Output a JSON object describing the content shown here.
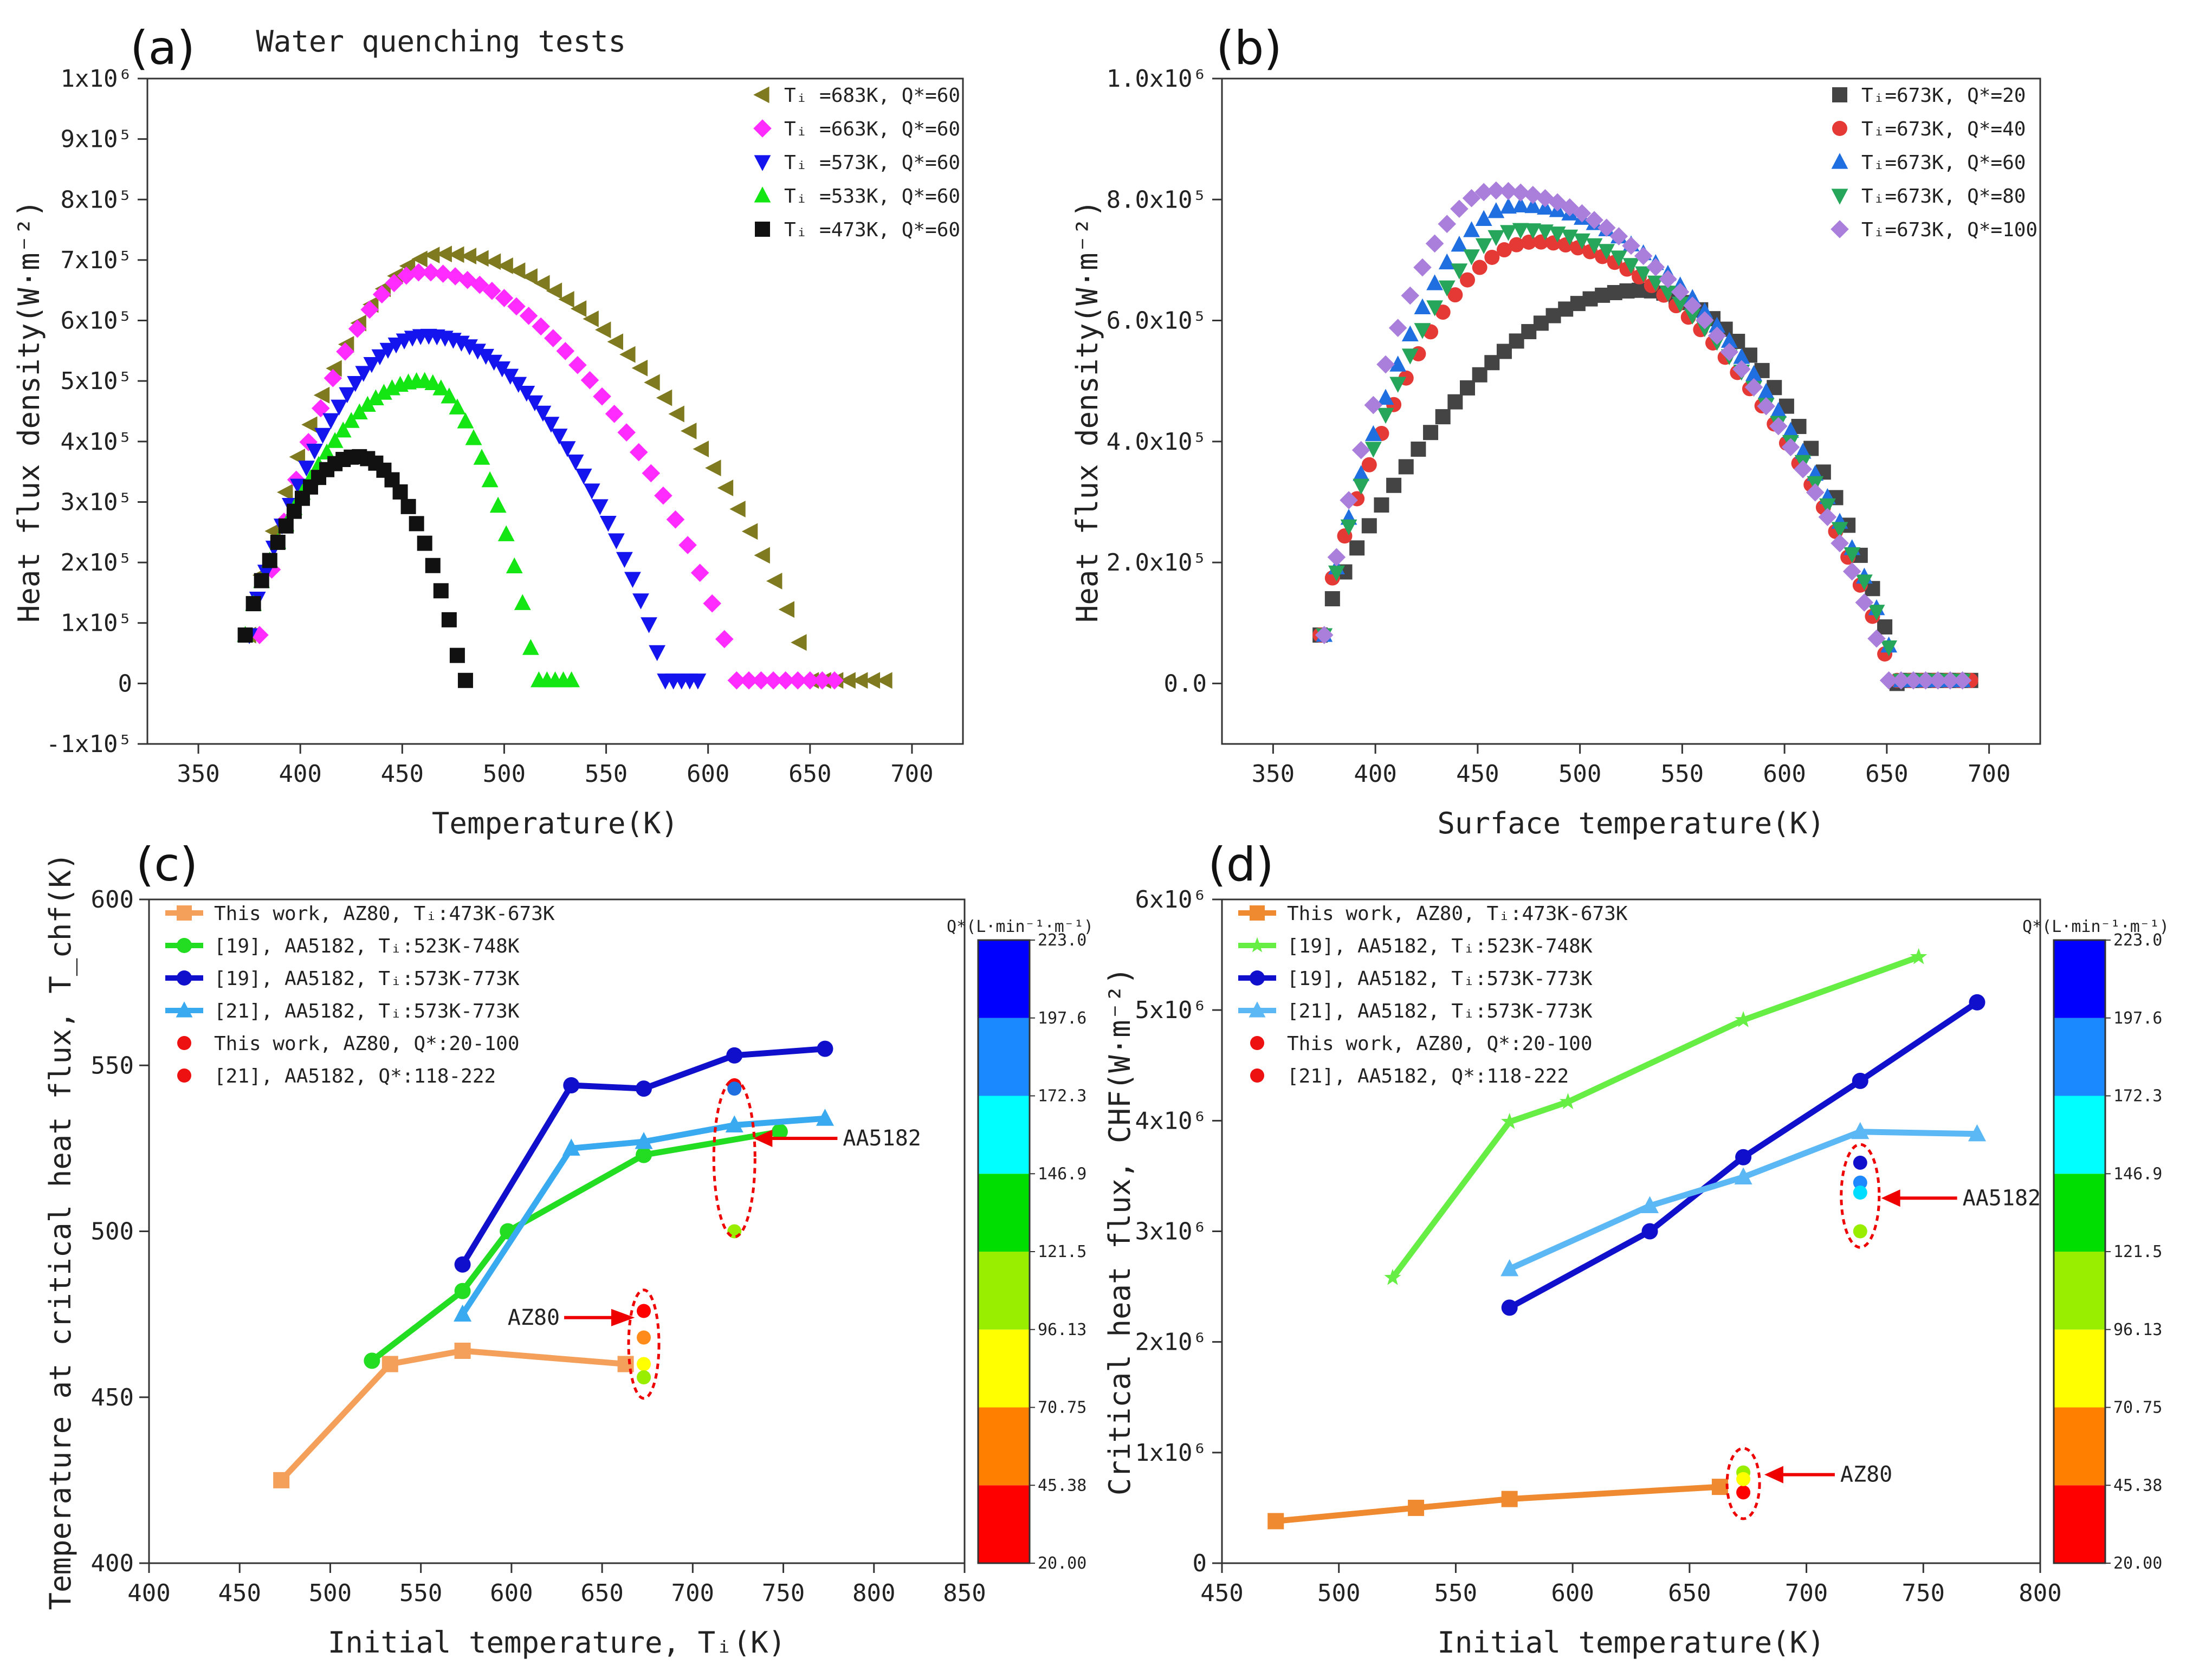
{
  "figure": {
    "panels": [
      "(a)",
      "(b)",
      "(c)",
      "(d)"
    ]
  },
  "chart_data": [
    {
      "id": "a",
      "type": "scatter",
      "panel_label": "(a)",
      "title": "Water quenching tests",
      "xlabel": "Temperature(K)",
      "ylabel": "Heat flux density(W·m⁻²)",
      "xlim": [
        325,
        725
      ],
      "ylim": [
        -100000,
        1000000
      ],
      "xticks": [
        350,
        400,
        450,
        500,
        550,
        600,
        650,
        700
      ],
      "yticks": [
        -100000,
        0,
        100000,
        200000,
        300000,
        400000,
        500000,
        600000,
        700000,
        800000,
        900000,
        1000000
      ],
      "ytick_labels": [
        "-1x10⁵",
        "0",
        "1x10⁵",
        "2x10⁵",
        "3x10⁵",
        "4x10⁵",
        "5x10⁵",
        "6x10⁵",
        "7x10⁵",
        "8x10⁵",
        "9x10⁵",
        "1x10⁶"
      ],
      "legend_pos": "top-right",
      "series": [
        {
          "name": "Tᵢ =683K, Q*=60",
          "marker": "triangle-left",
          "color": "#7f7a1f",
          "peak_x": 470,
          "peak_y": 710000,
          "start_x": 375,
          "end_x": 688,
          "zero_x": 650
        },
        {
          "name": "Tᵢ =663K, Q*=60",
          "marker": "diamond",
          "color": "#ff2bff",
          "peak_x": 460,
          "peak_y": 680000,
          "start_x": 380,
          "end_x": 663,
          "zero_x": 613
        },
        {
          "name": "Tᵢ =573K, Q*=60",
          "marker": "triangle-down",
          "color": "#1414ee",
          "peak_x": 462,
          "peak_y": 575000,
          "start_x": 375,
          "end_x": 595,
          "zero_x": 578
        },
        {
          "name": "Tᵢ =533K, Q*=60",
          "marker": "triangle-up",
          "color": "#14e614",
          "peak_x": 460,
          "peak_y": 500000,
          "start_x": 373,
          "end_x": 533,
          "zero_x": 515
        },
        {
          "name": "Tᵢ =473K, Q*=60",
          "marker": "square",
          "color": "#111111",
          "peak_x": 428,
          "peak_y": 375000,
          "start_x": 373,
          "end_x": 481,
          "zero_x": 479
        }
      ]
    },
    {
      "id": "b",
      "type": "scatter",
      "panel_label": "(b)",
      "title": "",
      "xlabel": "Surface temperature(K)",
      "ylabel": "Heat flux density(W·m⁻²)",
      "xlim": [
        325,
        725
      ],
      "ylim": [
        -100000,
        1000000
      ],
      "xticks": [
        350,
        400,
        450,
        500,
        550,
        600,
        650,
        700
      ],
      "yticks": [
        0,
        200000,
        400000,
        600000,
        800000,
        1000000
      ],
      "ytick_labels": [
        "0.0",
        "2.0x10⁵",
        "4.0x10⁵",
        "6.0x10⁵",
        "8.0x10⁵",
        "1.0x10⁶"
      ],
      "legend_pos": "top-right",
      "series": [
        {
          "name": "Tᵢ=673K, Q*=20",
          "marker": "square",
          "color": "#444444",
          "peak_x": 530,
          "peak_y": 650000,
          "start_x": 373,
          "end_x": 692,
          "zero_x": 655
        },
        {
          "name": "Tᵢ=673K, Q*=40",
          "marker": "circle",
          "color": "#e53935",
          "peak_x": 478,
          "peak_y": 730000,
          "start_x": 373,
          "end_x": 692,
          "zero_x": 652
        },
        {
          "name": "Tᵢ=673K, Q*=60",
          "marker": "triangle-up",
          "color": "#1f6fe0",
          "peak_x": 470,
          "peak_y": 790000,
          "start_x": 375,
          "end_x": 692,
          "zero_x": 655
        },
        {
          "name": "Tᵢ=673K, Q*=80",
          "marker": "triangle-down",
          "color": "#26a65b",
          "peak_x": 472,
          "peak_y": 750000,
          "start_x": 375,
          "end_x": 692,
          "zero_x": 655
        },
        {
          "name": "Tᵢ=673K, Q*=100",
          "marker": "diamond",
          "color": "#a97fdb",
          "peak_x": 458,
          "peak_y": 815000,
          "start_x": 375,
          "end_x": 692,
          "zero_x": 650
        }
      ]
    },
    {
      "id": "c",
      "type": "line",
      "panel_label": "(c)",
      "xlabel": "Initial temperature, Tᵢ(K)",
      "ylabel": "Temperature at critical heat flux, T_chf(K)",
      "xlim": [
        400,
        850
      ],
      "ylim": [
        400,
        600
      ],
      "xticks": [
        400,
        450,
        500,
        550,
        600,
        650,
        700,
        750,
        800,
        850
      ],
      "yticks": [
        400,
        450,
        500,
        550,
        600
      ],
      "legend_pos": "top-left",
      "series": [
        {
          "name": "This work, AZ80, Tᵢ:473K-673K",
          "marker": "square",
          "color": "#f5a05a",
          "x": [
            473,
            533,
            573,
            663
          ],
          "y": [
            425,
            460,
            464,
            460
          ]
        },
        {
          "name": "[19], AA5182, Tᵢ:523K-748K",
          "marker": "circle",
          "color": "#22dd22",
          "x": [
            523,
            573,
            598,
            673,
            748
          ],
          "y": [
            461,
            482,
            500,
            523,
            530
          ]
        },
        {
          "name": "[19], AA5182, Tᵢ:573K-773K",
          "marker": "circle",
          "color": "#1010cc",
          "x": [
            573,
            633,
            673,
            723,
            773
          ],
          "y": [
            490,
            544,
            543,
            553,
            555
          ]
        },
        {
          "name": "[21], AA5182, Tᵢ:573K-773K",
          "marker": "triangle-up",
          "color": "#39a9f0",
          "x": [
            573,
            633,
            673,
            723,
            773
          ],
          "y": [
            475,
            525,
            527,
            532,
            534
          ]
        }
      ],
      "scatter_points": [
        {
          "x": 673,
          "y": 476,
          "color": "#ff0000"
        },
        {
          "x": 673,
          "y": 468,
          "color": "#ff8c1a"
        },
        {
          "x": 673,
          "y": 460,
          "color": "#ffff00"
        },
        {
          "x": 673,
          "y": 456,
          "color": "#99ee00"
        },
        {
          "x": 723,
          "y": 544,
          "color": "#ff0000"
        },
        {
          "x": 723,
          "y": 543,
          "color": "#1f6fe0"
        },
        {
          "x": 723,
          "y": 500,
          "color": "#99ee00"
        }
      ],
      "scatter_legend": [
        "This work, AZ80, Q*:20-100",
        "[21], AA5182, Q*:118-222"
      ],
      "annotations": [
        "AA5182",
        "AZ80"
      ],
      "colorbar": {
        "title": "Q*(L·min⁻¹·m⁻¹)",
        "ticks": [
          "223.0",
          "197.6",
          "172.3",
          "146.9",
          "121.5",
          "96.13",
          "70.75",
          "45.38",
          "20.00"
        ],
        "colors": [
          "#ff0000",
          "#ff8000",
          "#ffff00",
          "#99ee00",
          "#00dd00",
          "#00ffff",
          "#1a88ff",
          "#0000ff"
        ]
      }
    },
    {
      "id": "d",
      "type": "line",
      "panel_label": "(d)",
      "xlabel": "Initial temperature(K)",
      "ylabel": "Critical heat flux, CHF(W·m⁻²)",
      "xlim": [
        450,
        800
      ],
      "ylim": [
        0,
        6000000
      ],
      "xticks": [
        450,
        500,
        550,
        600,
        650,
        700,
        750,
        800
      ],
      "yticks": [
        0,
        1000000,
        2000000,
        3000000,
        4000000,
        5000000,
        6000000
      ],
      "ytick_labels": [
        "0",
        "1x10⁶",
        "2x10⁶",
        "3x10⁶",
        "4x10⁶",
        "5x10⁶",
        "6x10⁶"
      ],
      "legend_pos": "top-left",
      "series": [
        {
          "name": "This work, AZ80, Tᵢ:473K-673K",
          "marker": "square",
          "color": "#f08a30",
          "x": [
            473,
            533,
            573,
            663
          ],
          "y": [
            380000,
            500000,
            580000,
            690000
          ]
        },
        {
          "name": "[19], AA5182, Tᵢ:523K-748K",
          "marker": "star",
          "color": "#66ee44",
          "x": [
            523,
            573,
            598,
            673,
            748
          ],
          "y": [
            2580000,
            3990000,
            4170000,
            4910000,
            5480000
          ]
        },
        {
          "name": "[19], AA5182, Tᵢ:573K-773K",
          "marker": "circle",
          "color": "#1010cc",
          "x": [
            573,
            633,
            673,
            723,
            773
          ],
          "y": [
            2310000,
            3000000,
            3670000,
            4360000,
            5070000
          ]
        },
        {
          "name": "[21], AA5182, Tᵢ:573K-773K",
          "marker": "triangle-up",
          "color": "#5cb8f5",
          "x": [
            573,
            633,
            673,
            723,
            773
          ],
          "y": [
            2660000,
            3230000,
            3490000,
            3900000,
            3880000
          ]
        }
      ],
      "scatter_points": [
        {
          "x": 673,
          "y": 640000,
          "color": "#ff0000"
        },
        {
          "x": 673,
          "y": 820000,
          "color": "#99ee00"
        },
        {
          "x": 673,
          "y": 760000,
          "color": "#ffff00"
        },
        {
          "x": 723,
          "y": 3620000,
          "color": "#1010cc"
        },
        {
          "x": 723,
          "y": 3440000,
          "color": "#1f88ff"
        },
        {
          "x": 723,
          "y": 3350000,
          "color": "#00ddff"
        },
        {
          "x": 723,
          "y": 3000000,
          "color": "#99ee00"
        }
      ],
      "scatter_legend": [
        "This work, AZ80, Q*:20-100",
        "[21], AA5182, Q*:118-222"
      ],
      "annotations": [
        "AA5182",
        "AZ80"
      ],
      "colorbar": {
        "title": "Q*(L·min⁻¹·m⁻¹)",
        "ticks": [
          "223.0",
          "197.6",
          "172.3",
          "146.9",
          "121.5",
          "96.13",
          "70.75",
          "45.38",
          "20.00"
        ],
        "colors": [
          "#ff0000",
          "#ff8000",
          "#ffff00",
          "#99ee00",
          "#00dd00",
          "#00ffff",
          "#1a88ff",
          "#0000ff"
        ]
      }
    }
  ]
}
